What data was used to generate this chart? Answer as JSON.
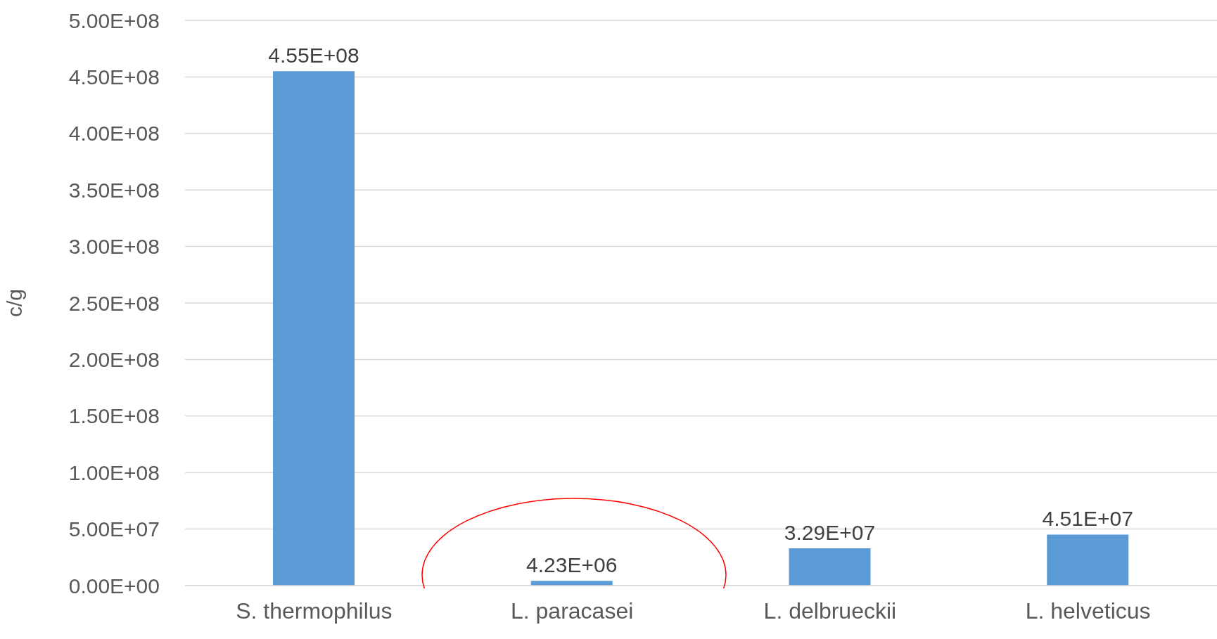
{
  "chart_data": {
    "type": "bar",
    "ylabel": "c/g",
    "categories": [
      "S. thermophilus",
      "L. paracasei",
      "L. delbrueckii",
      "L. helveticus"
    ],
    "values": [
      455000000,
      4230000,
      32900000,
      45100000
    ],
    "color": "#5b9bd5",
    "value_labels": [
      "4.55E+08",
      "4.23E+06",
      "3.29E+07",
      "4.51E+07"
    ],
    "ylim": [
      0,
      500000000
    ],
    "yticks": [
      {
        "value": 0,
        "label": "0.00E+00"
      },
      {
        "value": 50000000,
        "label": "5.00E+07"
      },
      {
        "value": 100000000,
        "label": "1.00E+08"
      },
      {
        "value": 150000000,
        "label": "1.50E+08"
      },
      {
        "value": 200000000,
        "label": "2.00E+08"
      },
      {
        "value": 250000000,
        "label": "2.50E+08"
      },
      {
        "value": 300000000,
        "label": "3.00E+08"
      },
      {
        "value": 350000000,
        "label": "3.50E+08"
      },
      {
        "value": 400000000,
        "label": "4.00E+08"
      },
      {
        "value": 450000000,
        "label": "4.50E+08"
      },
      {
        "value": 500000000,
        "label": "5.00E+08"
      }
    ],
    "grid": "y",
    "legend": false
  }
}
